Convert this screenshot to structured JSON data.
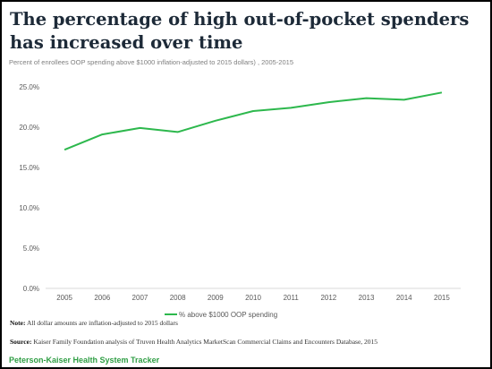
{
  "header": {
    "title": "The percentage of high out-of-pocket spenders has increased over time",
    "subtitle": "Percent of enrollees OOP spending above $1000  inflation-adjusted to 2015  dollars)  , 2005-2015"
  },
  "chart_data": {
    "type": "line",
    "title": "",
    "xlabel": "",
    "ylabel": "",
    "x": [
      "2005",
      "2006",
      "2007",
      "2008",
      "2009",
      "2010",
      "2011",
      "2012",
      "2013",
      "2014",
      "2015"
    ],
    "series": [
      {
        "name": "% above $1000 OOP spending",
        "values": [
          17.2,
          19.1,
          19.9,
          19.4,
          20.8,
          22.0,
          22.4,
          23.1,
          23.6,
          23.4,
          24.3
        ],
        "color": "#2db84d"
      }
    ],
    "ylim": [
      0,
      25
    ],
    "yticks": [
      0,
      5,
      10,
      15,
      20,
      25
    ],
    "ytick_labels": [
      "0.0%",
      "5.0%",
      "10.0%",
      "15.0%",
      "20.0%",
      "25.0%"
    ],
    "grid": false,
    "legend_position": "bottom-center"
  },
  "footer": {
    "note_label": "Note:",
    "note_text": " All dollar amounts are inflation-adjusted to 2015 dollars",
    "source_label": "Source:",
    "source_text": " Kaiser Family Foundation analysis of Truven Health Analytics MarketScan Commercial Claims and Encounters Database, 2015",
    "brand": "Peterson-Kaiser Health System Tracker"
  },
  "colors": {
    "title": "#1d2a38",
    "brand": "#2f9e44",
    "line": "#2db84d"
  }
}
